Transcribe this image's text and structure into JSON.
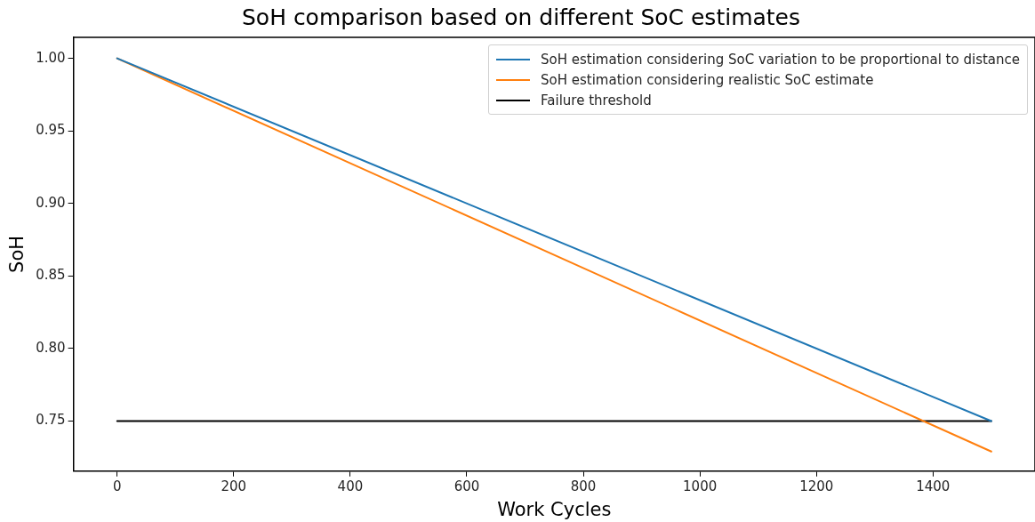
{
  "chart_data": {
    "type": "line",
    "title": "SoH comparison based on different SoC estimates",
    "xlabel": "Work Cycles",
    "ylabel": "SoH",
    "xlim": [
      -75,
      1575
    ],
    "xticks": [
      0,
      200,
      400,
      600,
      800,
      1000,
      1200,
      1400
    ],
    "ylim": [
      0.7155,
      1.0145
    ],
    "yticks": [
      {
        "value": 0.75,
        "label": "0.75"
      },
      {
        "value": 0.8,
        "label": "0.80"
      },
      {
        "value": 0.85,
        "label": "0.85"
      },
      {
        "value": 0.9,
        "label": "0.90"
      },
      {
        "value": 0.95,
        "label": "0.95"
      },
      {
        "value": 1,
        "label": "1.00"
      }
    ],
    "x": [
      0,
      1500
    ],
    "grid": false,
    "legend": "top right",
    "marker": "none",
    "line_style": "solid",
    "series": [
      {
        "name": "SoH estimation considering SoC variation to be proportional to distance",
        "color": "#1f77b4",
        "values": [
          1,
          0.75
        ]
      },
      {
        "name": "SoH estimation considering realistic SoC estimate",
        "color": "#ff7f0e",
        "values": [
          1,
          0.729
        ]
      },
      {
        "name": "Failure threshold",
        "color": "#000000",
        "values": [
          0.75,
          0.75
        ]
      }
    ]
  }
}
